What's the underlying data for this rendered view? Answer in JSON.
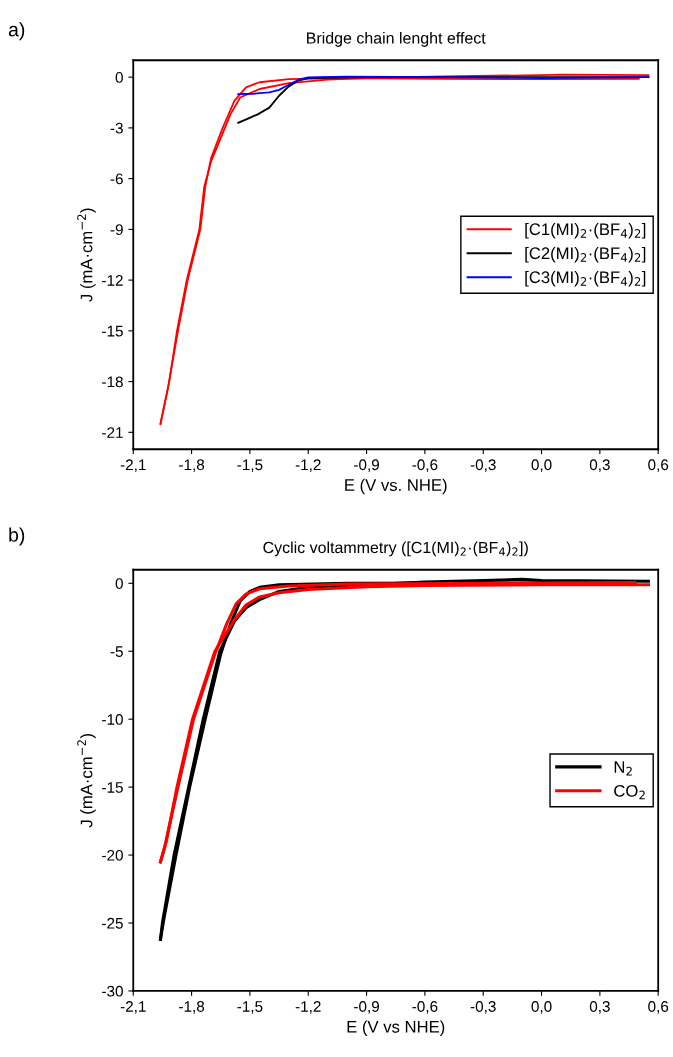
{
  "chart_data": [
    {
      "type": "line",
      "title": "Bridge chain lenght effect",
      "xlabel": "E (V vs. NHE)",
      "ylabel": "J (mA·cm$^{−2}$)",
      "annotations": [
        "a)"
      ],
      "legend": "right",
      "grid": false,
      "marker": "none",
      "line_style": "solid",
      "xlim": [
        -2.1,
        0.6
      ],
      "ylim": [
        -22,
        1
      ],
      "xticks": [
        {
          "value": -2.1,
          "label": "-2,1"
        },
        {
          "value": -1.8,
          "label": "-1,8"
        },
        {
          "value": -1.5,
          "label": "-1,5"
        },
        {
          "value": -1.2,
          "label": "-1,2"
        },
        {
          "value": -0.9,
          "label": "-0,9"
        },
        {
          "value": -0.6,
          "label": "-0,6"
        },
        {
          "value": -0.3,
          "label": "-0,3"
        },
        {
          "value": 0.0,
          "label": "0,0"
        },
        {
          "value": 0.3,
          "label": "0,3"
        },
        {
          "value": 0.6,
          "label": "0,6"
        }
      ],
      "yticks": [
        0,
        -3,
        -6,
        -9,
        -12,
        -15,
        -18,
        -21
      ],
      "series": [
        {
          "name": "[C1(MI)$_{2}$·(BF$_{4}$)$_{2}$]",
          "color": "#ff0000",
          "x": [
            0.55,
            0.1,
            0.0,
            -0.5,
            -0.9,
            -1.1,
            -1.3,
            -1.45,
            -1.55,
            -1.6,
            -1.65,
            -1.7,
            -1.735,
            -1.76,
            -1.825,
            -1.875,
            -1.915,
            -1.96
          ],
          "values": [
            0.12,
            0.15,
            0.12,
            0.05,
            -0.05,
            -0.15,
            -0.35,
            -0.7,
            -1.2,
            -2.2,
            -3.6,
            -5.0,
            -6.5,
            -9,
            -12,
            -15,
            -18,
            -20.5
          ]
        },
        {
          "color": "#ff0000",
          "x": [
            -1.96,
            -1.92,
            -1.87,
            -1.82,
            -1.755,
            -1.73,
            -1.7,
            -1.64,
            -1.58,
            -1.52,
            -1.45,
            -1.3,
            -1.0,
            -0.5,
            0.0,
            0.5
          ],
          "values": [
            -20.5,
            -18.3,
            -15,
            -12,
            -9,
            -6.5,
            -4.8,
            -3,
            -1.4,
            -0.6,
            -0.3,
            -0.12,
            -0.05,
            -0.1,
            -0.12,
            -0.1
          ]
        },
        {
          "name": "[C2(MI)$_{2}$·(BF$_{4}$)$_{2}$]",
          "color": "#000000",
          "x": [
            0.55,
            0.0,
            -0.9,
            -1.2,
            -1.25,
            -1.3,
            -1.35,
            -1.4,
            -1.46,
            -1.51,
            -1.56
          ],
          "values": [
            0,
            0,
            0,
            -0.05,
            -0.2,
            -0.55,
            -1.1,
            -1.8,
            -2.2,
            -2.45,
            -2.7
          ]
        },
        {
          "name": "[C3(MI)$_{2}$·(BF$_{4}$)$_{2}$]",
          "color": "#0000ff",
          "x": [
            0.55,
            0.0,
            -0.5,
            -1.0,
            -1.2,
            -1.25,
            -1.3,
            -1.35,
            -1.4,
            -1.48,
            -1.56
          ],
          "values": [
            0,
            -0.05,
            0,
            0.03,
            -0.02,
            -0.15,
            -0.45,
            -0.75,
            -0.9,
            -0.98,
            -1.0
          ]
        }
      ]
    },
    {
      "type": "line",
      "title": "Cyclic voltammetry ([C1(MI)$_{2}$·(BF$_{4}$)$_{2}$])",
      "xlabel": "E (V vs NHE)",
      "ylabel": "J (mA·cm$^{−2}$)",
      "annotations": [
        "b)"
      ],
      "legend": "right",
      "grid": false,
      "marker": "none",
      "line_style": "solid",
      "xlim": [
        -2.1,
        0.6
      ],
      "ylim": [
        -30,
        1
      ],
      "xticks": [
        {
          "value": -2.1,
          "label": "-2,1"
        },
        {
          "value": -1.8,
          "label": "-1,8"
        },
        {
          "value": -1.5,
          "label": "-1,5"
        },
        {
          "value": -1.2,
          "label": "-1,2"
        },
        {
          "value": -0.9,
          "label": "-0,9"
        },
        {
          "value": -0.6,
          "label": "-0,6"
        },
        {
          "value": -0.3,
          "label": "-0,3"
        },
        {
          "value": 0.0,
          "label": "0,0"
        },
        {
          "value": 0.3,
          "label": "0,3"
        },
        {
          "value": 0.6,
          "label": "0,6"
        }
      ],
      "yticks": [
        0,
        -5,
        -10,
        -15,
        -20,
        -25,
        -30
      ],
      "series": [
        {
          "name": "N$_{2}$",
          "color": "#000000",
          "x": [
            0.55,
            0.0,
            -0.1,
            -0.3,
            -0.6,
            -0.9,
            -1.2,
            -1.35,
            -1.45,
            -1.52,
            -1.58,
            -1.655,
            -1.74,
            -1.815,
            -1.89,
            -1.95,
            -1.96
          ],
          "values": [
            0.15,
            0.2,
            0.3,
            0.2,
            0.1,
            -0.1,
            -0.3,
            -0.6,
            -1.2,
            -1.8,
            -2.8,
            -5,
            -10,
            -15,
            -20,
            -25,
            -26.2
          ]
        },
        {
          "color": "#000000",
          "x": [
            -1.96,
            -1.94,
            -1.88,
            -1.81,
            -1.73,
            -1.65,
            -1.6,
            -1.55,
            -1.5,
            -1.45,
            -1.35,
            -1.0,
            0.48
          ],
          "values": [
            -26.2,
            -24.5,
            -20,
            -15,
            -10,
            -5.2,
            -3,
            -1.3,
            -0.6,
            -0.3,
            -0.1,
            0,
            0.05
          ]
        },
        {
          "name": "CO$_{2}$",
          "color": "#ff0000",
          "x": [
            0.55,
            0.0,
            -0.6,
            -0.9,
            -1.2,
            -1.35,
            -1.45,
            -1.52,
            -1.58,
            -1.68,
            -1.795,
            -1.875,
            -1.93,
            -1.96
          ],
          "values": [
            -0.1,
            -0.1,
            -0.15,
            -0.25,
            -0.45,
            -0.7,
            -1.0,
            -1.6,
            -2.7,
            -5,
            -10,
            -15,
            -19,
            -20.5
          ]
        },
        {
          "color": "#ff0000",
          "x": [
            -1.96,
            -1.94,
            -1.87,
            -1.79,
            -1.68,
            -1.62,
            -1.57,
            -1.52,
            -1.45,
            -1.3,
            -1.0,
            0.48
          ],
          "values": [
            -20.5,
            -19.5,
            -15,
            -10,
            -5.2,
            -3,
            -1.5,
            -0.8,
            -0.4,
            -0.2,
            -0.05,
            0.05
          ]
        }
      ]
    }
  ]
}
